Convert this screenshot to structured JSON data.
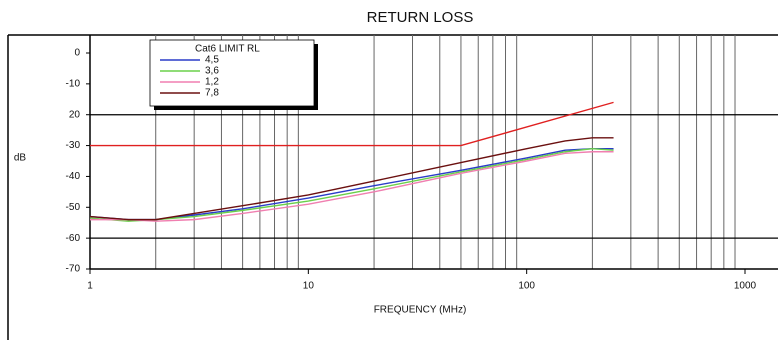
{
  "chart_data": {
    "type": "line",
    "title": "RETURN LOSS",
    "xlabel": "FREQUENCY (MHz)",
    "ylabel": "dB",
    "xscale": "log",
    "xlim": [
      1,
      1000
    ],
    "xticks": [
      1,
      10,
      100,
      1000
    ],
    "xgrid_minor": [
      2,
      3,
      4,
      5,
      6,
      7,
      8,
      9,
      20,
      30,
      40,
      50,
      60,
      70,
      80,
      90,
      200,
      300,
      400,
      500,
      600,
      700,
      800,
      900
    ],
    "ylim": [
      -70,
      0
    ],
    "yticks": [
      0,
      -10,
      {
        "value": -20,
        "label": "20"
      },
      -30,
      -40,
      -50,
      -60,
      -70
    ],
    "ygrid": [
      -20,
      -60
    ],
    "series": [
      {
        "name": "Cat6 LIMIT RL",
        "color": "#e02020",
        "x": [
          1,
          50,
          250
        ],
        "values": [
          -30,
          -30,
          -16
        ]
      },
      {
        "name": "4,5",
        "color": "#2a3cc8",
        "x": [
          1,
          1.5,
          2,
          3,
          5,
          10,
          20,
          50,
          100,
          150,
          200,
          250
        ],
        "values": [
          -53,
          -54,
          -54,
          -52.5,
          -50.5,
          -47,
          -43,
          -38,
          -34,
          -31.5,
          -31,
          -31
        ]
      },
      {
        "name": "3,6",
        "color": "#6ad04a",
        "x": [
          1,
          1.5,
          2,
          3,
          5,
          10,
          20,
          50,
          100,
          150,
          200,
          250
        ],
        "values": [
          -53.5,
          -54.5,
          -54,
          -53,
          -51,
          -48,
          -44,
          -38.5,
          -34.5,
          -32,
          -31,
          -31.5
        ]
      },
      {
        "name": "1,2",
        "color": "#f07fb0",
        "x": [
          1,
          1.5,
          2,
          3,
          5,
          10,
          20,
          50,
          100,
          150,
          200,
          250
        ],
        "values": [
          -54,
          -54,
          -54.5,
          -54,
          -52,
          -49,
          -45,
          -39,
          -35,
          -32.5,
          -32,
          -32
        ]
      },
      {
        "name": "7,8",
        "color": "#6b1010",
        "x": [
          1,
          1.5,
          2,
          3,
          5,
          10,
          20,
          50,
          100,
          150,
          200,
          250
        ],
        "values": [
          -53,
          -54,
          -54,
          -52,
          -49.5,
          -46,
          -41.5,
          -35.5,
          -31,
          -28.5,
          -27.5,
          -27.5
        ]
      }
    ]
  }
}
